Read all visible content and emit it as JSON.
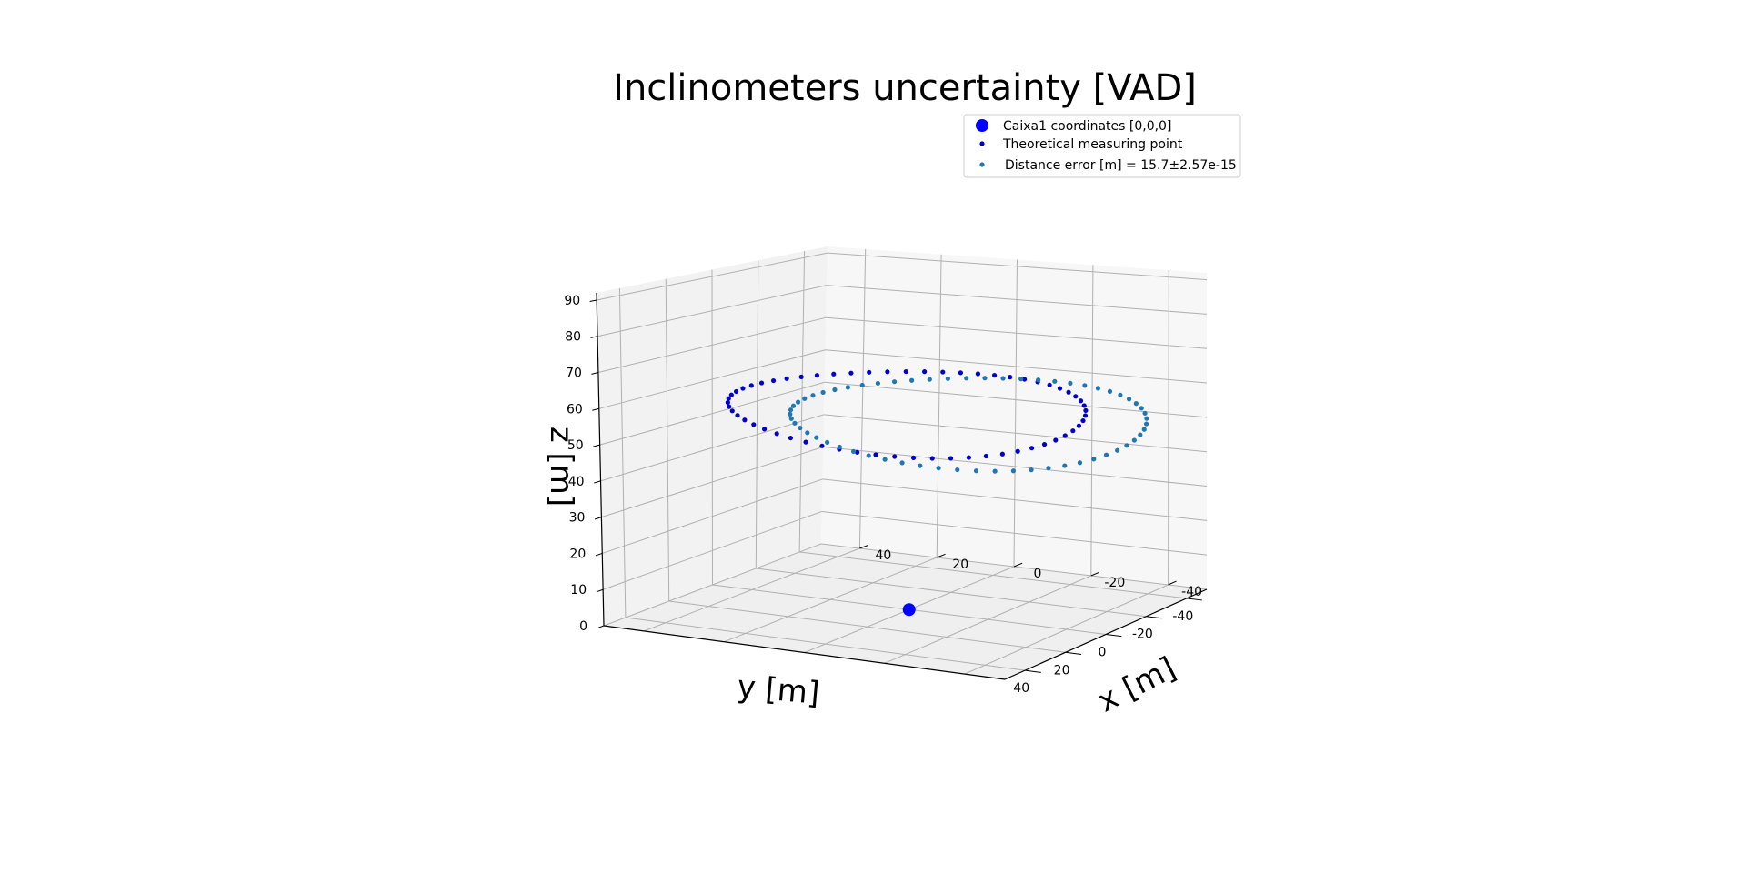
{
  "chart_data": {
    "type": "scatter3d",
    "title": "Inclinometers uncertainty [VAD]",
    "xlabel": "x [m]",
    "ylabel": "y [m]",
    "zlabel": "z [m]",
    "xlim": [
      -50,
      50
    ],
    "ylim": [
      -50,
      50
    ],
    "zlim": [
      0,
      92
    ],
    "xticks": [
      "-40",
      "-20",
      "0",
      "20",
      "40"
    ],
    "yticks": [
      "-40",
      "-20",
      "0",
      "20",
      "40"
    ],
    "zticks": [
      "0",
      "10",
      "20",
      "30",
      "40",
      "50",
      "60",
      "70",
      "80",
      "90"
    ],
    "grid": true,
    "legend_position": "top-right",
    "colors": {
      "origin": "#0000ff",
      "theoretical": "#0000cc",
      "measured": "#1f77b4",
      "grid": "#b0b0b0"
    },
    "series": [
      {
        "name": "Caixa1 coordinates [0,0,0]",
        "marker": "large-circle",
        "points": [
          [
            0,
            0,
            0
          ]
        ]
      },
      {
        "name": "Theoretical measuring point",
        "marker": "small-circle",
        "circle": {
          "center": [
            0,
            0
          ],
          "radius": 40,
          "z": 60,
          "count": 60
        }
      },
      {
        "name": "Distance error [m] = 15.7±2.57e-15",
        "marker": "small-circle",
        "circle": {
          "center": [
            -15.7,
            0
          ],
          "radius": 40,
          "z": 60,
          "count": 60
        }
      }
    ]
  }
}
